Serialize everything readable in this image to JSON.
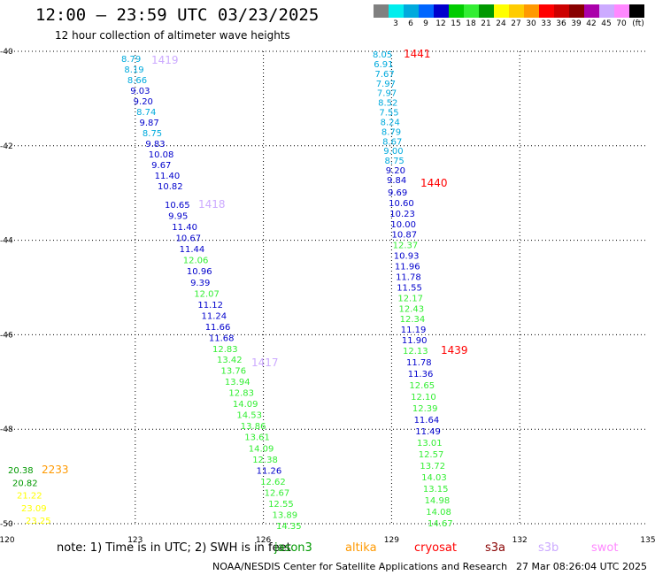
{
  "header": {
    "title": "12:00 — 23:59 UTC 03/23/2025",
    "subtitle": "12 hour collection of altimeter wave heights"
  },
  "scale": {
    "unit": "(ft)",
    "swatches": [
      {
        "color": "#808080",
        "label": ""
      },
      {
        "color": "#00eeee",
        "label": "3"
      },
      {
        "color": "#00aadd",
        "label": "6"
      },
      {
        "color": "#0066ff",
        "label": "9"
      },
      {
        "color": "#0000cc",
        "label": "12"
      },
      {
        "color": "#00cc00",
        "label": "15"
      },
      {
        "color": "#33ee33",
        "label": "18"
      },
      {
        "color": "#009900",
        "label": "21"
      },
      {
        "color": "#ffff00",
        "label": "24"
      },
      {
        "color": "#ffcc00",
        "label": "27"
      },
      {
        "color": "#ff9900",
        "label": "30"
      },
      {
        "color": "#ff0000",
        "label": "33"
      },
      {
        "color": "#cc0000",
        "label": "36"
      },
      {
        "color": "#880000",
        "label": "39"
      },
      {
        "color": "#aa00aa",
        "label": "42"
      },
      {
        "color": "#ccaaff",
        "label": "45"
      },
      {
        "color": "#ff88ff",
        "label": "70"
      },
      {
        "color": "#000000",
        "label": ""
      }
    ]
  },
  "map": {
    "x_ticks": [
      "120",
      "123",
      "126",
      "129",
      "132",
      "135"
    ],
    "y_ticks": [
      "-40",
      "-42",
      "-44",
      "-46",
      "-48",
      "-50"
    ],
    "lon_range": [
      120,
      135
    ],
    "lat_range": [
      -40,
      -50
    ]
  },
  "tracks": [
    {
      "readings": [
        {
          "v": "8.79",
          "c": "#00aadd"
        },
        {
          "v": "8.19",
          "c": "#00aadd"
        },
        {
          "v": "8.66",
          "c": "#00aadd"
        },
        {
          "v": "9.03",
          "c": "#0000cc"
        },
        {
          "v": "9.20",
          "c": "#0000cc"
        },
        {
          "v": "8.74",
          "c": "#00aadd"
        },
        {
          "v": "9.87",
          "c": "#0000cc"
        },
        {
          "v": "8.75",
          "c": "#00aadd"
        },
        {
          "v": "9.83",
          "c": "#0000cc"
        },
        {
          "v": "10.08",
          "c": "#0000cc"
        },
        {
          "v": "9.67",
          "c": "#0000cc"
        },
        {
          "v": "11.40",
          "c": "#0000cc"
        },
        {
          "v": "10.82",
          "c": "#0000cc"
        }
      ]
    },
    {
      "readings": [
        {
          "v": "10.65",
          "c": "#0000cc"
        },
        {
          "v": "9.95",
          "c": "#0000cc"
        },
        {
          "v": "11.40",
          "c": "#0000cc"
        },
        {
          "v": "10.67",
          "c": "#0000cc"
        },
        {
          "v": "11.44",
          "c": "#0000cc"
        },
        {
          "v": "12.06",
          "c": "#33ee33"
        },
        {
          "v": "10.96",
          "c": "#0000cc"
        },
        {
          "v": "9.39",
          "c": "#0000cc"
        },
        {
          "v": "12.07",
          "c": "#33ee33"
        },
        {
          "v": "11.12",
          "c": "#0000cc"
        },
        {
          "v": "11.24",
          "c": "#0000cc"
        },
        {
          "v": "11.66",
          "c": "#0000cc"
        },
        {
          "v": "11.68",
          "c": "#0000cc"
        },
        {
          "v": "12.83",
          "c": "#33ee33"
        }
      ]
    },
    {
      "readings": [
        {
          "v": "13.42",
          "c": "#33ee33"
        },
        {
          "v": "13.76",
          "c": "#33ee33"
        },
        {
          "v": "13.94",
          "c": "#33ee33"
        },
        {
          "v": "12.83",
          "c": "#33ee33"
        },
        {
          "v": "14.09",
          "c": "#33ee33"
        },
        {
          "v": "14.53",
          "c": "#33ee33"
        },
        {
          "v": "13.86",
          "c": "#33ee33"
        },
        {
          "v": "13.61",
          "c": "#33ee33"
        },
        {
          "v": "14.09",
          "c": "#33ee33"
        },
        {
          "v": "12.38",
          "c": "#33ee33"
        },
        {
          "v": "11.26",
          "c": "#0000cc"
        },
        {
          "v": "12.62",
          "c": "#33ee33"
        },
        {
          "v": "12.67",
          "c": "#33ee33"
        },
        {
          "v": "12.55",
          "c": "#33ee33"
        },
        {
          "v": "13.89",
          "c": "#33ee33"
        },
        {
          "v": "14.35",
          "c": "#33ee33"
        }
      ]
    },
    {
      "readings": [
        {
          "v": "8.05",
          "c": "#00aadd"
        },
        {
          "v": "6.91",
          "c": "#00aadd"
        },
        {
          "v": "7.67",
          "c": "#00aadd"
        },
        {
          "v": "7.97",
          "c": "#00aadd"
        },
        {
          "v": "7.97",
          "c": "#00aadd"
        },
        {
          "v": "8.52",
          "c": "#00aadd"
        },
        {
          "v": "7.55",
          "c": "#00aadd"
        },
        {
          "v": "8.24",
          "c": "#00aadd"
        },
        {
          "v": "8.79",
          "c": "#00aadd"
        },
        {
          "v": "8.67",
          "c": "#00aadd"
        },
        {
          "v": "9.00",
          "c": "#00aadd"
        },
        {
          "v": "8.75",
          "c": "#00aadd"
        },
        {
          "v": "9.20",
          "c": "#0000cc"
        },
        {
          "v": "9.84",
          "c": "#0000cc"
        }
      ]
    },
    {
      "readings": [
        {
          "v": "9.69",
          "c": "#0000cc"
        },
        {
          "v": "10.60",
          "c": "#0000cc"
        },
        {
          "v": "10.23",
          "c": "#0000cc"
        },
        {
          "v": "10.00",
          "c": "#0000cc"
        },
        {
          "v": "10.87",
          "c": "#0000cc"
        },
        {
          "v": "12.37",
          "c": "#33ee33"
        },
        {
          "v": "10.93",
          "c": "#0000cc"
        },
        {
          "v": "11.96",
          "c": "#0000cc"
        },
        {
          "v": "11.78",
          "c": "#0000cc"
        },
        {
          "v": "11.55",
          "c": "#0000cc"
        },
        {
          "v": "12.17",
          "c": "#33ee33"
        },
        {
          "v": "12.43",
          "c": "#33ee33"
        },
        {
          "v": "12.34",
          "c": "#33ee33"
        },
        {
          "v": "11.19",
          "c": "#0000cc"
        },
        {
          "v": "11.90",
          "c": "#0000cc"
        },
        {
          "v": "12.13",
          "c": "#33ee33"
        }
      ]
    },
    {
      "readings": [
        {
          "v": "11.78",
          "c": "#0000cc"
        },
        {
          "v": "11.36",
          "c": "#0000cc"
        },
        {
          "v": "12.65",
          "c": "#33ee33"
        },
        {
          "v": "12.10",
          "c": "#33ee33"
        },
        {
          "v": "12.39",
          "c": "#33ee33"
        },
        {
          "v": "11.64",
          "c": "#0000cc"
        },
        {
          "v": "11.49",
          "c": "#0000cc"
        },
        {
          "v": "13.01",
          "c": "#33ee33"
        },
        {
          "v": "12.57",
          "c": "#33ee33"
        },
        {
          "v": "13.72",
          "c": "#33ee33"
        },
        {
          "v": "14.03",
          "c": "#33ee33"
        },
        {
          "v": "13.15",
          "c": "#33ee33"
        },
        {
          "v": "14.98",
          "c": "#33ee33"
        },
        {
          "v": "14.08",
          "c": "#33ee33"
        },
        {
          "v": "14.67",
          "c": "#33ee33"
        }
      ]
    },
    {
      "readings": [
        {
          "v": "20.38",
          "c": "#009900"
        },
        {
          "v": "20.82",
          "c": "#009900"
        },
        {
          "v": "21.22",
          "c": "#ffff00"
        },
        {
          "v": "23.09",
          "c": "#ffff00"
        },
        {
          "v": "23.25",
          "c": "#ffff00"
        }
      ]
    }
  ],
  "time_labels": [
    {
      "text": "1419",
      "c": "#ccaaff"
    },
    {
      "text": "1418",
      "c": "#ccaaff"
    },
    {
      "text": "1417",
      "c": "#ccaaff"
    },
    {
      "text": "1441",
      "c": "#ff0000"
    },
    {
      "text": "1440",
      "c": "#ff0000"
    },
    {
      "text": "1439",
      "c": "#ff0000"
    },
    {
      "text": "2233",
      "c": "#ff9900"
    }
  ],
  "footer": {
    "note": "note:  1) Time is in UTC; 2) SWH is in feet",
    "satellites": [
      {
        "name": "jason3",
        "color": "#009900"
      },
      {
        "name": "altika",
        "color": "#ff9900"
      },
      {
        "name": "cryosat",
        "color": "#ff0000"
      },
      {
        "name": "s3a",
        "color": "#880000"
      },
      {
        "name": "s3b",
        "color": "#ccaaff"
      },
      {
        "name": "swot",
        "color": "#ff88ff"
      }
    ],
    "credit": "NOAA/NESDIS Center for Satellite Applications and Research",
    "timestamp": "27 Mar 08:26:04 UTC 2025"
  }
}
